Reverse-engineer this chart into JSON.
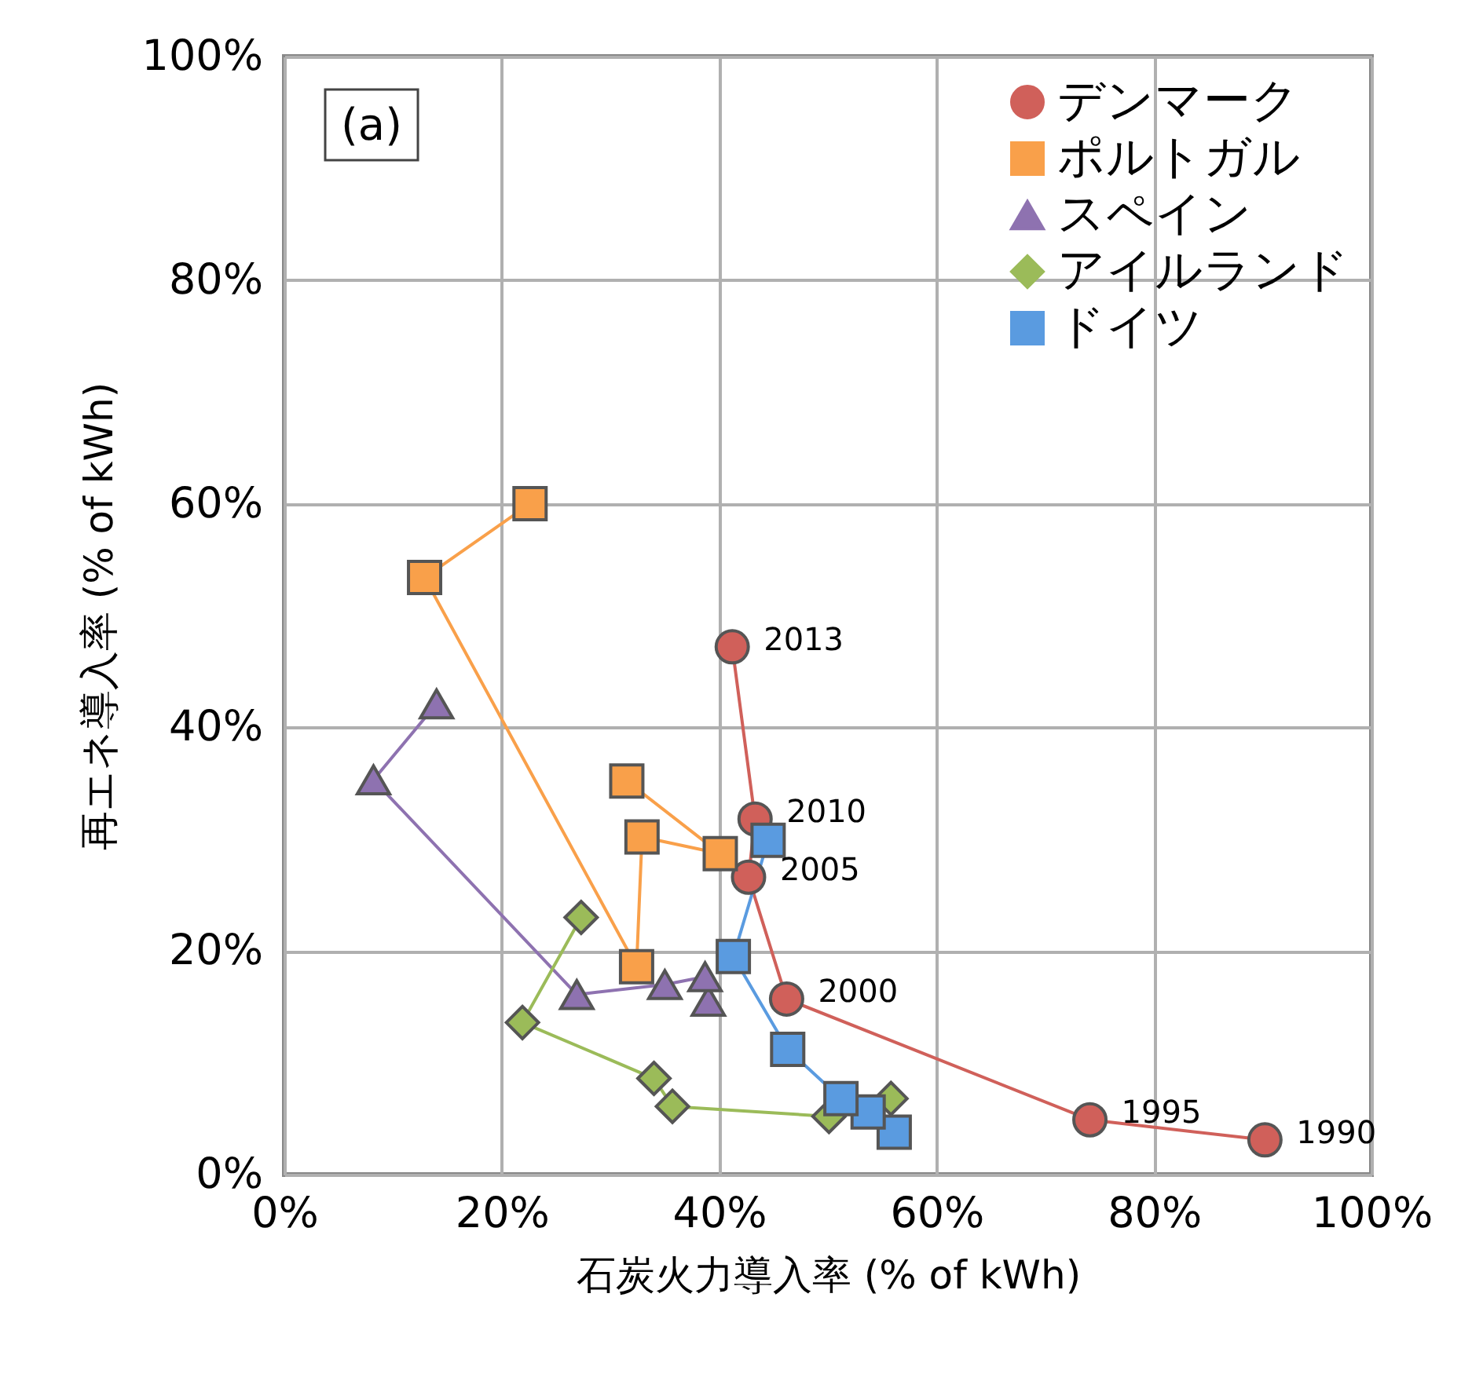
{
  "chart_data": {
    "type": "line",
    "xlabel": "石炭火力導入率 (% of kWh)",
    "ylabel": "再エネ導入率 (% of kWh)",
    "xlim": [
      0,
      100
    ],
    "ylim": [
      0,
      100
    ],
    "xticks": [
      {
        "value": 0,
        "label": "0%"
      },
      {
        "value": 20,
        "label": "20%"
      },
      {
        "value": 40,
        "label": "40%"
      },
      {
        "value": 60,
        "label": "60%"
      },
      {
        "value": 80,
        "label": "80%"
      },
      {
        "value": 100,
        "label": "100%"
      }
    ],
    "yticks": [
      {
        "value": 0,
        "label": "0%"
      },
      {
        "value": 20,
        "label": "20%"
      },
      {
        "value": 40,
        "label": "40%"
      },
      {
        "value": 60,
        "label": "60%"
      },
      {
        "value": 80,
        "label": "80%"
      },
      {
        "value": 100,
        "label": "100%"
      }
    ],
    "grid": true,
    "legend": "top right",
    "series": [
      {
        "name": "デンマーク",
        "color": "#d0605a",
        "marker": "circle",
        "x": [
          90.2,
          74.1,
          46.2,
          42.7,
          43.3,
          41.2
        ],
        "values": [
          3.1,
          4.9,
          15.7,
          26.6,
          31.8,
          47.2
        ]
      },
      {
        "name": "ポルトガル",
        "color": "#f9a04a",
        "marker": "square",
        "x": [
          31.5,
          40.1,
          32.9,
          32.4,
          12.9,
          22.6
        ],
        "values": [
          35.2,
          28.7,
          30.2,
          18.6,
          53.4,
          60.0
        ]
      },
      {
        "name": "スペイン",
        "color": "#8e72b0",
        "marker": "triangle",
        "x": [
          39.0,
          38.7,
          35.0,
          26.9,
          8.2,
          14.0
        ],
        "values": [
          15.5,
          17.7,
          17.0,
          16.1,
          35.3,
          42.1
        ]
      },
      {
        "name": "アイルランド",
        "color": "#9bbb59",
        "marker": "diamond",
        "x": [
          55.8,
          50.1,
          35.7,
          34.0,
          21.9,
          27.3
        ],
        "values": [
          6.8,
          5.2,
          6.1,
          8.6,
          13.6,
          23.0
        ]
      },
      {
        "name": "ドイツ",
        "color": "#5a9be0",
        "marker": "square",
        "x": [
          56.1,
          53.7,
          51.2,
          46.3,
          41.3,
          44.5
        ],
        "values": [
          3.8,
          5.6,
          6.8,
          11.2,
          19.5,
          29.9
        ]
      }
    ],
    "annotations": [
      "(a)",
      {
        "text": "1990",
        "x": 90.2,
        "y": 3.1
      },
      {
        "text": "1995",
        "x": 74.1,
        "y": 4.9
      },
      {
        "text": "2000",
        "x": 46.2,
        "y": 15.7
      },
      {
        "text": "2005",
        "x": 42.7,
        "y": 26.6
      },
      {
        "text": "2010",
        "x": 43.3,
        "y": 31.8
      },
      {
        "text": "2013",
        "x": 41.2,
        "y": 47.2
      }
    ]
  }
}
